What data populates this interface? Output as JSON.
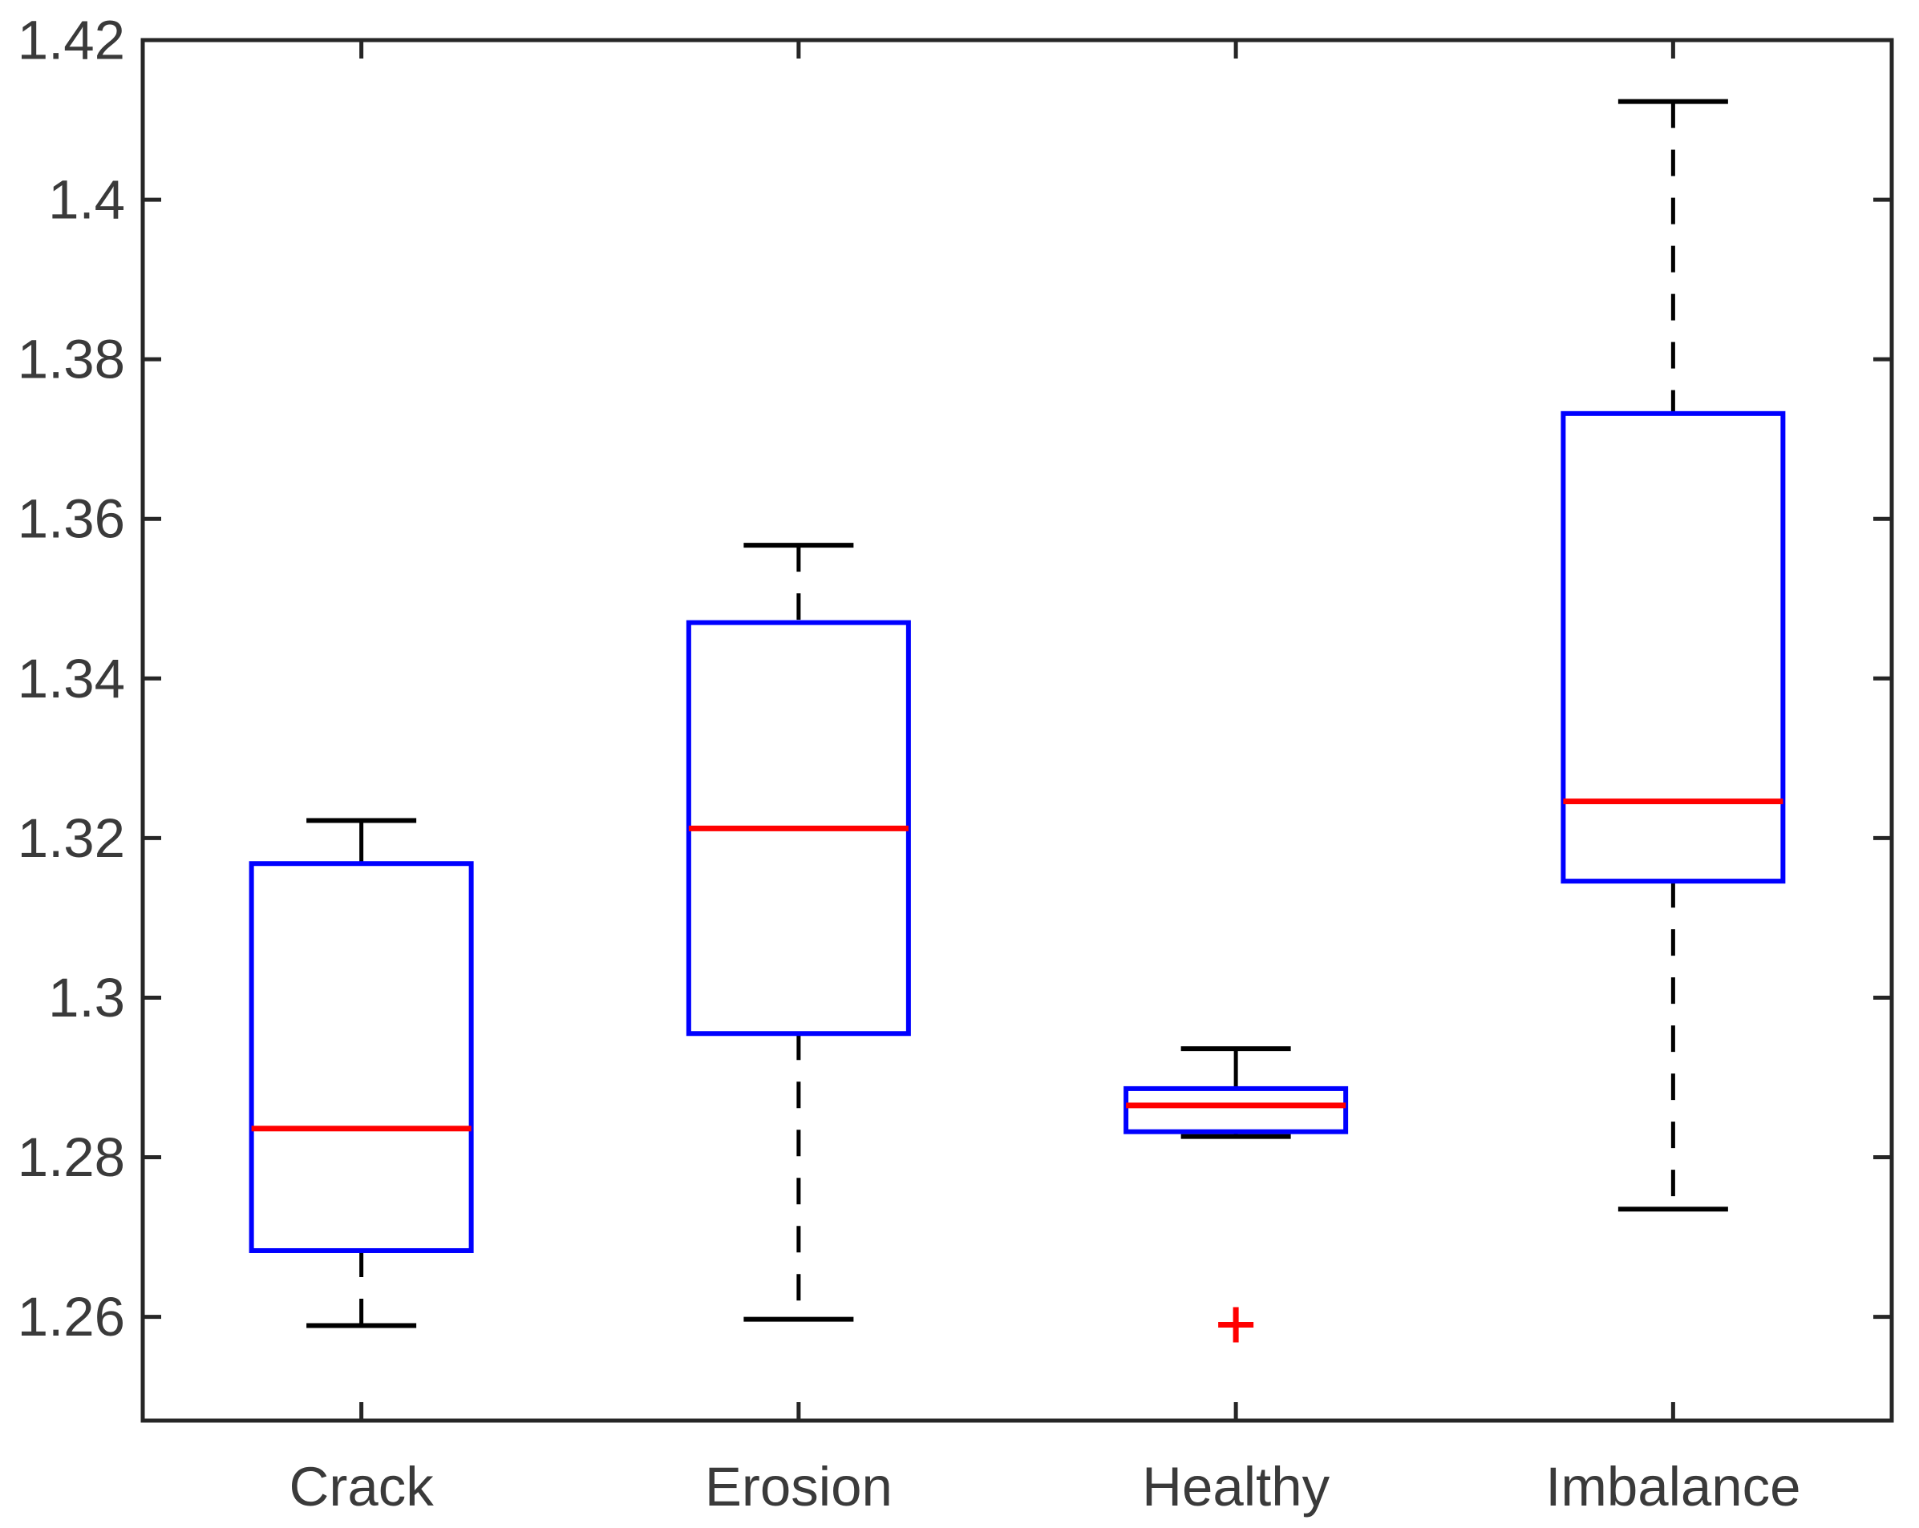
{
  "figure": {
    "background": "#ffffff",
    "frame_color": "#262626",
    "tick_label_color": "#3a3a3a",
    "box_color": "#0000ff",
    "median_color": "#ff0000",
    "whisker_color": "#000000",
    "cap_color": "#000000",
    "outlier_color": "#ff0000",
    "outlier_marker": "plus"
  },
  "chart_data": {
    "type": "boxplot",
    "title": "",
    "xlabel": "",
    "ylabel": "",
    "grid": false,
    "legend": null,
    "categories": [
      "Crack",
      "Erosion",
      "Healthy",
      "Imbalance"
    ],
    "ylim": [
      1.247,
      1.42
    ],
    "yticks": [
      1.26,
      1.28,
      1.3,
      1.32,
      1.34,
      1.36,
      1.38,
      1.4,
      1.42
    ],
    "ytick_labels": [
      "1.26",
      "1.28",
      "1.3",
      "1.32",
      "1.34",
      "1.36",
      "1.38",
      "1.4",
      "1.42"
    ],
    "series": [
      {
        "name": "Crack",
        "whisker_low": 1.2589,
        "q1": 1.2683,
        "median": 1.2836,
        "q3": 1.3168,
        "whisker_high": 1.3222,
        "outliers": []
      },
      {
        "name": "Erosion",
        "whisker_low": 1.2597,
        "q1": 1.2955,
        "median": 1.3212,
        "q3": 1.347,
        "whisker_high": 1.3567,
        "outliers": []
      },
      {
        "name": "Healthy",
        "whisker_low": 1.2826,
        "q1": 1.2832,
        "median": 1.2865,
        "q3": 1.2886,
        "whisker_high": 1.2936,
        "outliers": [
          1.259
        ]
      },
      {
        "name": "Imbalance",
        "whisker_low": 1.2735,
        "q1": 1.3146,
        "median": 1.3246,
        "q3": 1.3732,
        "whisker_high": 1.4123,
        "outliers": []
      }
    ]
  }
}
